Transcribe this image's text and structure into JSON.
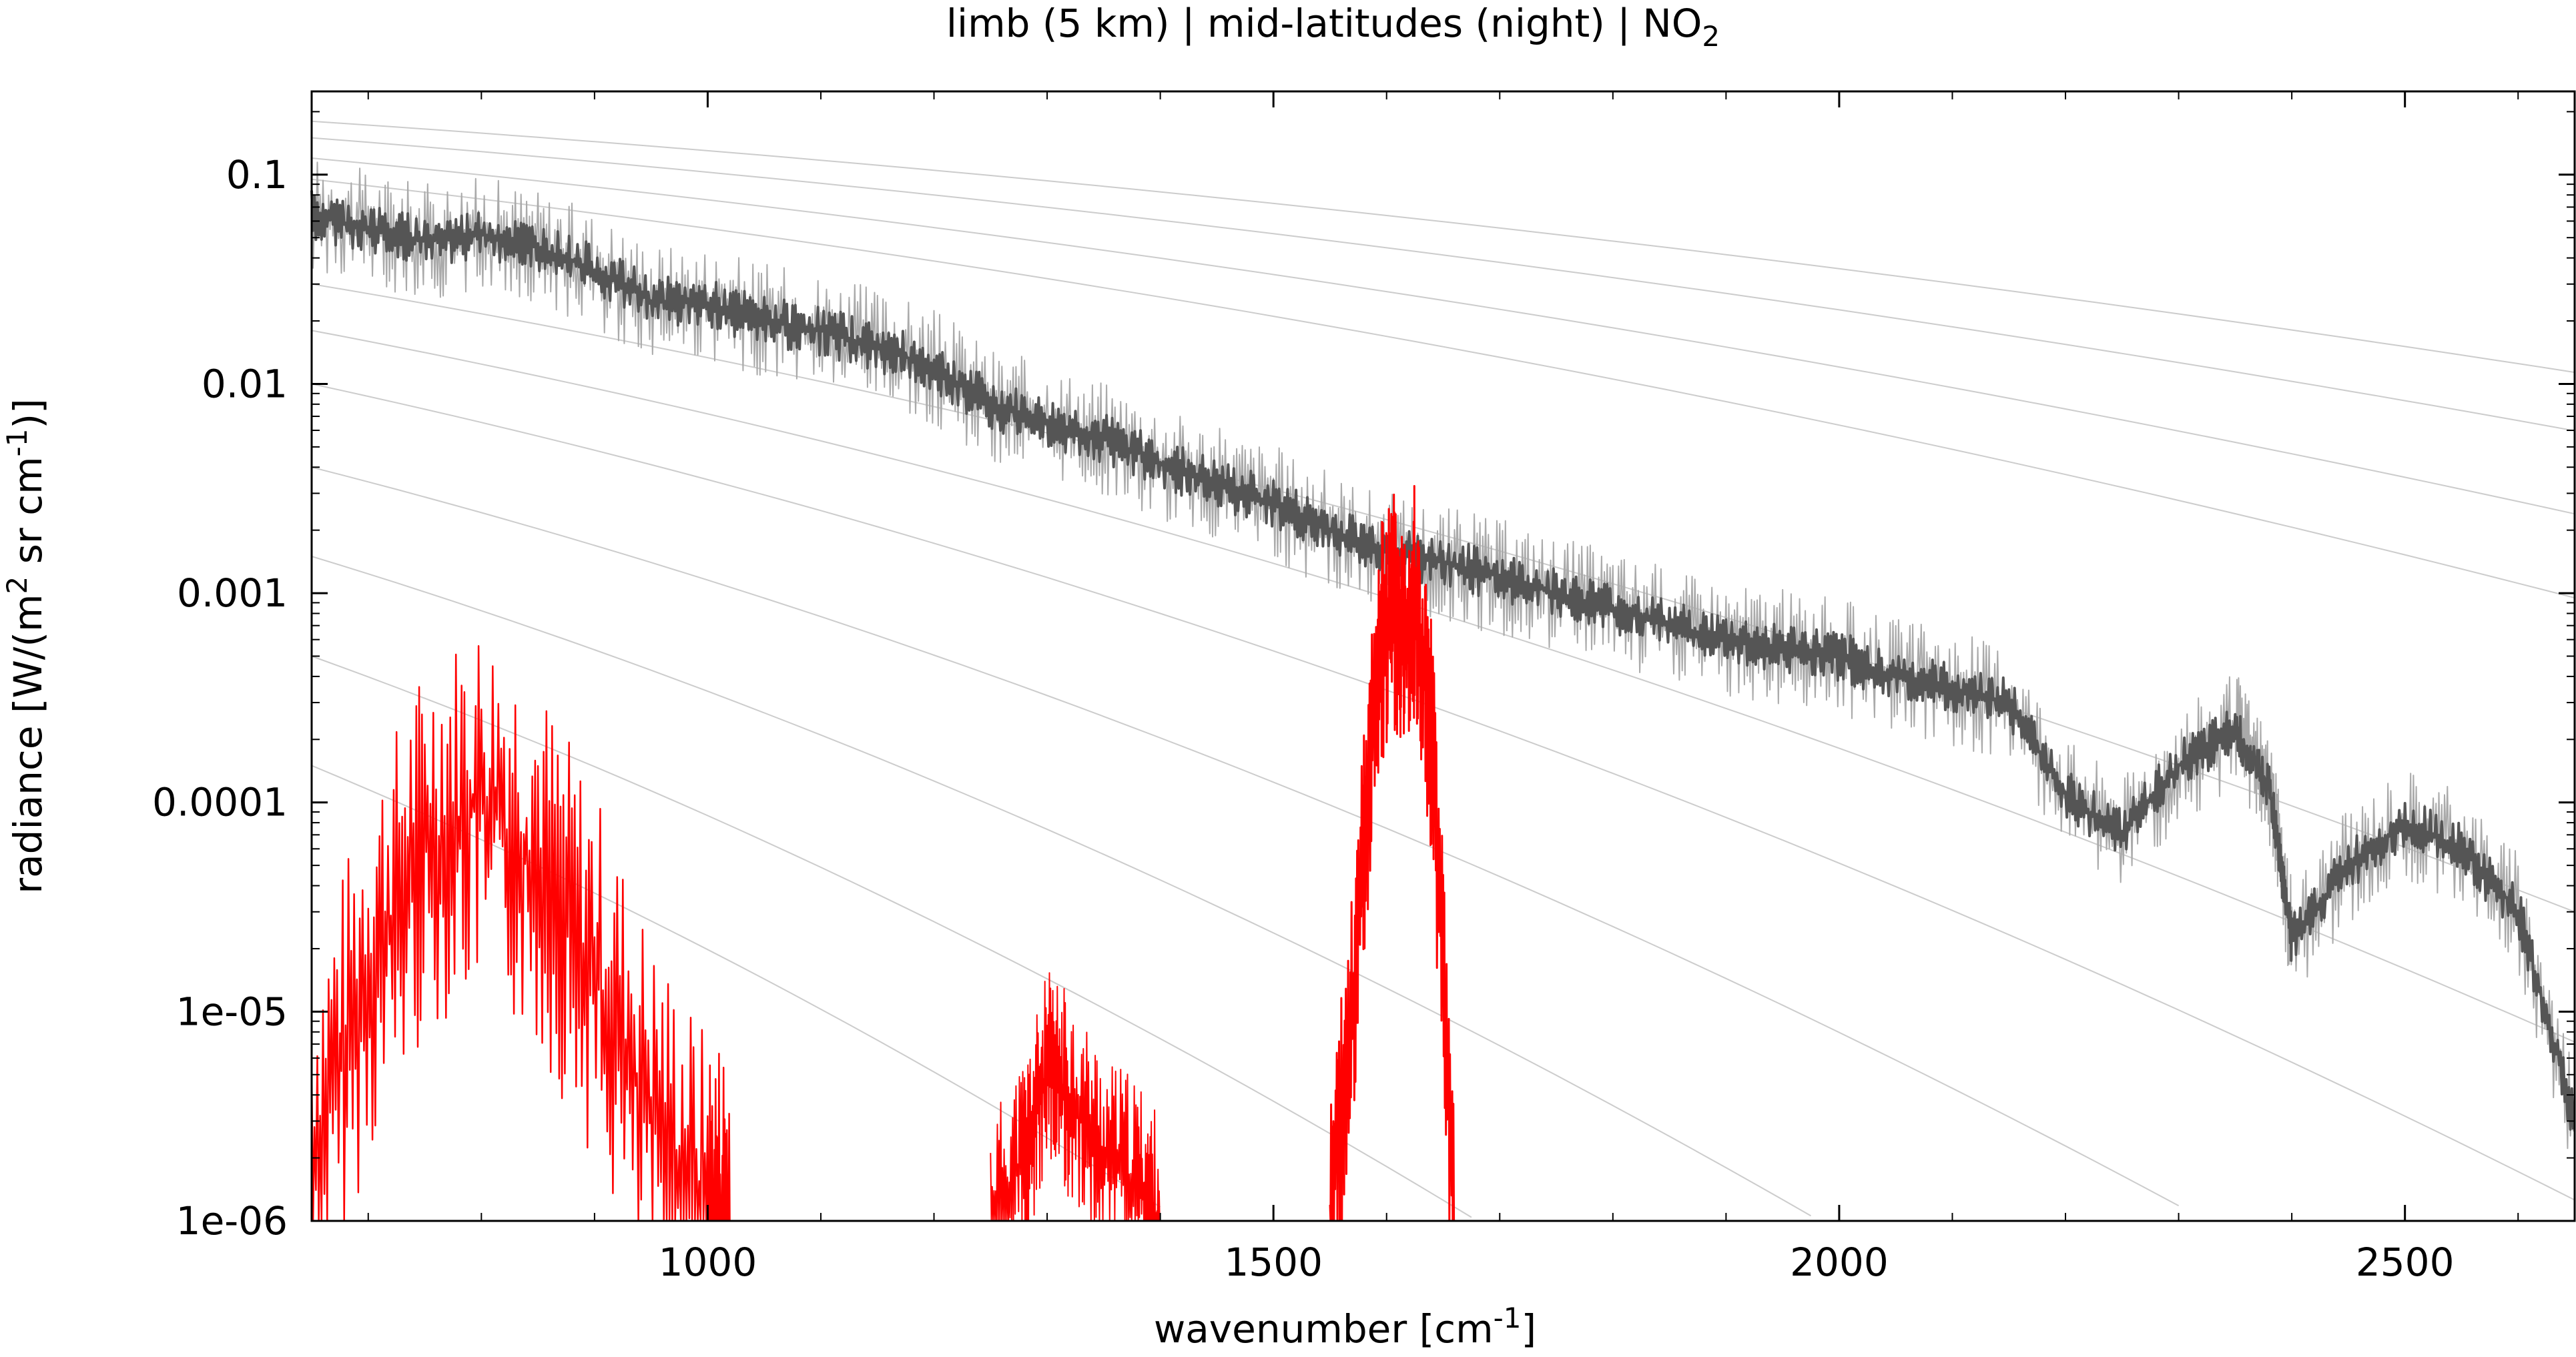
{
  "chart_data": {
    "type": "line",
    "title": "limb (5 km) | mid-latitudes (night) | NO",
    "title_subscript": "2",
    "xlabel": "wavenumber [cm",
    "xlabel_sup": "-1",
    "xlabel_end": "]",
    "ylabel": "radiance [W/(m",
    "ylabel_sup1": "2",
    "ylabel_mid": " sr cm",
    "ylabel_sup2": "-1",
    "ylabel_end": ")]",
    "xlim": [
      650,
      2650
    ],
    "ylim": [
      1e-06,
      0.25
    ],
    "yscale": "log",
    "grid": false,
    "x_ticks": [
      1000,
      1500,
      2000,
      2500
    ],
    "x_tick_labels": [
      "1000",
      "1500",
      "2000",
      "2500"
    ],
    "y_ticks": [
      1e-06,
      1e-05,
      0.0001,
      0.001,
      0.01,
      0.1
    ],
    "y_tick_labels": [
      "1e-06",
      "1e-05",
      "0.0001",
      "0.001",
      "0.01",
      "0.1"
    ],
    "colors": {
      "total_radiance": "#555555",
      "total_radiance_alt": "#aaaaaa",
      "no2_contribution": "#ff0000",
      "reference_curves": "#cccccc",
      "axes": "#000000"
    },
    "series": [
      {
        "x": [
          650,
          700,
          750,
          800,
          850,
          900,
          950,
          1000,
          1050,
          1100,
          1150,
          1200,
          1250,
          1300,
          1350,
          1400,
          1450,
          1500,
          1550,
          1600,
          1650,
          1700,
          1750,
          1800,
          1850,
          1900,
          1950,
          2000,
          2050,
          2100,
          2150,
          2200,
          2250,
          2300,
          2350,
          2380,
          2400,
          2450,
          2500,
          2550,
          2600,
          2650
        ],
        "y": [
          0.065,
          0.055,
          0.048,
          0.052,
          0.045,
          0.035,
          0.025,
          0.024,
          0.02,
          0.018,
          0.015,
          0.012,
          0.008,
          0.0065,
          0.0055,
          0.0042,
          0.0033,
          0.0027,
          0.002,
          0.0016,
          0.0014,
          0.0012,
          0.001,
          0.00085,
          0.0007,
          0.0006,
          0.00055,
          0.0005,
          0.0004,
          0.00035,
          0.0003,
          0.00011,
          7e-05,
          0.00015,
          0.00022,
          0.00012,
          2.2e-05,
          5e-05,
          8e-05,
          6e-05,
          3e-05,
          3e-06
        ]
      },
      {
        "x": [
          650,
          700,
          750,
          800,
          850,
          900,
          950,
          1000,
          1020
        ],
        "y": [
          2e-06,
          1.5e-05,
          6e-05,
          0.0001,
          5e-05,
          1.5e-05,
          3e-06,
          1e-06,
          1e-06
        ]
      },
      {
        "x": [
          1250,
          1280,
          1300,
          1320,
          1350,
          1380,
          1400
        ],
        "y": [
          1e-06,
          2e-06,
          5e-06,
          4e-06,
          2e-06,
          1.5e-06,
          1e-06
        ]
      },
      {
        "x": [
          1550,
          1570,
          1590,
          1605,
          1615,
          1625,
          1640,
          1660
        ],
        "y": [
          1e-06,
          1e-05,
          0.0004,
          0.0009,
          0.0006,
          0.0009,
          0.0002,
          1e-06
        ]
      }
    ]
  }
}
